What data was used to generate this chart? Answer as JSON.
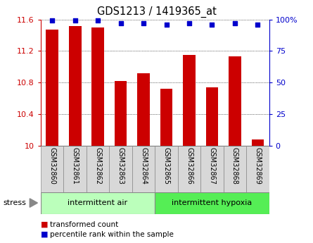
{
  "title": "GDS1213 / 1419365_at",
  "categories": [
    "GSM32860",
    "GSM32861",
    "GSM32862",
    "GSM32863",
    "GSM32864",
    "GSM32865",
    "GSM32866",
    "GSM32867",
    "GSM32868",
    "GSM32869"
  ],
  "bar_values": [
    11.47,
    11.52,
    11.5,
    10.82,
    10.92,
    10.72,
    11.15,
    10.74,
    11.13,
    10.08
  ],
  "percentile_values": [
    99,
    99,
    99,
    97,
    97,
    96,
    97,
    96,
    97,
    96
  ],
  "bar_color": "#cc0000",
  "dot_color": "#0000cc",
  "ylim_left": [
    10.0,
    11.6
  ],
  "ylim_right": [
    0,
    100
  ],
  "yticks_left": [
    10.0,
    10.4,
    10.8,
    11.2,
    11.6
  ],
  "ytick_labels_left": [
    "10",
    "10.4",
    "10.8",
    "11.2",
    "11.6"
  ],
  "yticks_right": [
    0,
    25,
    50,
    75,
    100
  ],
  "ytick_labels_right": [
    "0",
    "25",
    "50",
    "75",
    "100%"
  ],
  "group1_label": "intermittent air",
  "group2_label": "intermittent hypoxia",
  "group1_color": "#bbffbb",
  "group2_color": "#55ee55",
  "stress_label": "stress",
  "legend_bar_label": "transformed count",
  "legend_dot_label": "percentile rank within the sample",
  "left_tick_color": "#cc0000",
  "right_tick_color": "#0000cc",
  "bg_color": "#ffffff"
}
